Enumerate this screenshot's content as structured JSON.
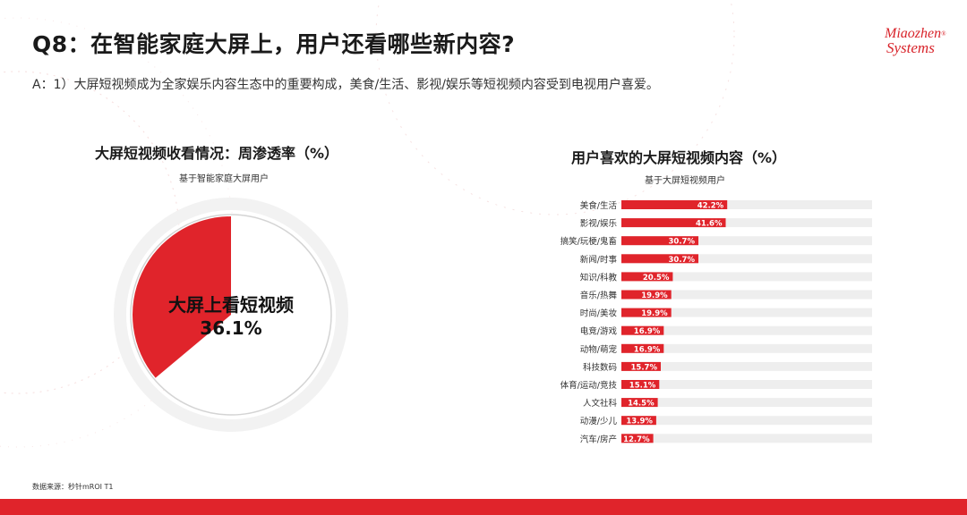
{
  "header": {
    "title": "Q8：在智能家庭大屏上，用户还看哪些新内容?",
    "subtitle": "A：1）大屏短视频成为全家娱乐内容生态中的重要构成，美食/生活、影视/娱乐等短视频内容受到电视用户喜爱。"
  },
  "logo": {
    "line1": "Miaozhen",
    "trademark": "®",
    "line2": "Systems"
  },
  "colors": {
    "accent": "#e0242b",
    "track": "#eeeeee",
    "ring": "#f2f2f2"
  },
  "footer": {
    "source": "数据来源：秒针mROI T1"
  },
  "chart_data": [
    {
      "type": "pie",
      "title": "大屏短视频收看情况：周渗透率（%）",
      "subtitle": "基于智能家庭大屏用户",
      "center_label": "大屏上看短视频",
      "center_value": "36.1%",
      "slices": [
        {
          "label": "大屏上看短视频",
          "value": 36.1
        },
        {
          "label": "",
          "value": 63.9
        }
      ]
    },
    {
      "type": "bar",
      "orientation": "horizontal",
      "title": "用户喜欢的大屏短视频内容（%）",
      "subtitle": "基于大屏短视频用户",
      "categories": [
        "美食/生活",
        "影视/娱乐",
        "搞笑/玩梗/鬼畜",
        "新闻/时事",
        "知识/科教",
        "音乐/热舞",
        "时尚/美妆",
        "电竞/游戏",
        "动物/萌宠",
        "科技数码",
        "体育/运动/竞技",
        "人文社科",
        "动漫/少儿",
        "汽车/房产"
      ],
      "values": [
        42.2,
        41.6,
        30.7,
        30.7,
        20.5,
        19.9,
        19.9,
        16.9,
        16.9,
        15.7,
        15.1,
        14.5,
        13.9,
        12.7
      ],
      "value_labels": [
        "42.2%",
        "41.6%",
        "30.7%",
        "30.7%",
        "20.5%",
        "19.9%",
        "19.9%",
        "16.9%",
        "16.9%",
        "15.7%",
        "15.1%",
        "14.5%",
        "13.9%",
        "12.7%"
      ],
      "xlim": [
        0,
        100
      ]
    }
  ]
}
